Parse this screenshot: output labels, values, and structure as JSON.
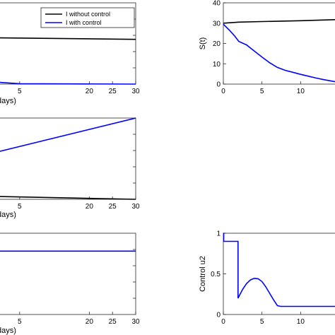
{
  "colors": {
    "without": "#000000",
    "with": "#0000ff"
  },
  "chart_data": [
    {
      "id": "I",
      "type": "line",
      "xlabel": "days)",
      "ylabel": "",
      "xlim": [
        0,
        30
      ],
      "ylim": [
        0,
        1
      ],
      "xticks": [
        "5",
        "20",
        "25",
        "30"
      ],
      "xtick_values": [
        5,
        20,
        25,
        30
      ],
      "yticks": [],
      "grid": false,
      "legend": {
        "placement": "top-right",
        "entries": [
          "I without control",
          "I with control"
        ]
      },
      "series": [
        {
          "name": "I without control",
          "color": "#000000",
          "x": [
            0,
            30
          ],
          "y": [
            0.57,
            0.55
          ]
        },
        {
          "name": "I with control",
          "color": "#0000ff",
          "x": [
            0,
            1,
            5,
            30
          ],
          "y": [
            0.03,
            0.02,
            0.005,
            0.0
          ]
        }
      ]
    },
    {
      "id": "S",
      "type": "line",
      "ylabel": "S(t)",
      "xlabel": "",
      "xlim": [
        0,
        15
      ],
      "ylim": [
        0,
        40
      ],
      "xticks": [
        "0",
        "5",
        "10"
      ],
      "xtick_values": [
        0,
        5,
        10
      ],
      "yticks": [
        "0",
        "10",
        "20",
        "30",
        "40"
      ],
      "ytick_values": [
        0,
        10,
        20,
        30,
        40
      ],
      "grid": false,
      "series": [
        {
          "color": "#000000",
          "x": [
            0,
            2,
            5,
            10,
            15
          ],
          "y": [
            30,
            30.5,
            30.8,
            31.2,
            31.8
          ]
        },
        {
          "color": "#0000ff",
          "x": [
            0,
            0.8,
            1.5,
            2.0,
            3.0,
            4.0,
            5.0,
            6.0,
            7.0,
            8.0,
            9.0,
            10.0,
            11.0,
            12.0,
            13.0,
            14.0,
            15.0
          ],
          "y": [
            29.5,
            26.5,
            23.5,
            21,
            19.3,
            16.3,
            13.3,
            10.5,
            8.2,
            6.8,
            5.8,
            4.8,
            3.9,
            3.0,
            2.2,
            1.5,
            0.8
          ]
        }
      ]
    },
    {
      "id": "middle-left",
      "type": "line",
      "xlabel": "days)",
      "ylabel": "",
      "xlim": [
        0,
        30
      ],
      "ylim": [
        0,
        1
      ],
      "xticks": [
        "5",
        "20",
        "25",
        "30"
      ],
      "xtick_values": [
        5,
        20,
        25,
        30
      ],
      "yticks": [],
      "grid": false,
      "series": [
        {
          "color": "#0000ff",
          "x": [
            0,
            30
          ],
          "y": [
            0.58,
            1.0
          ]
        },
        {
          "color": "#000000",
          "x": [
            0,
            30
          ],
          "y": [
            0.035,
            0.0
          ]
        }
      ]
    },
    {
      "id": "bottom-left",
      "type": "line",
      "xlabel": "days)",
      "ylabel": "",
      "xlim": [
        0,
        30
      ],
      "ylim": [
        0,
        1
      ],
      "xticks": [
        "5",
        "20",
        "25",
        "30"
      ],
      "xtick_values": [
        5,
        20,
        25,
        30
      ],
      "yticks": [],
      "grid": false,
      "series": [
        {
          "color": "#0000ff",
          "x": [
            0,
            30
          ],
          "y": [
            0.78,
            0.78
          ]
        }
      ]
    },
    {
      "id": "u2",
      "type": "line",
      "ylabel": "Control u2",
      "xlabel": "",
      "xlim": [
        0,
        15
      ],
      "ylim": [
        0,
        1
      ],
      "xticks": [
        "0",
        "5",
        "10"
      ],
      "xtick_values": [
        0,
        5,
        10
      ],
      "yticks": [
        "0",
        "0.5",
        "1"
      ],
      "ytick_values": [
        0,
        0.5,
        1
      ],
      "grid": false,
      "series": [
        {
          "color": "#0000ff",
          "x": [
            0,
            0.05,
            0.05,
            1.9,
            1.9,
            2.0,
            2.5,
            3.0,
            3.5,
            4.0,
            4.5,
            5.0,
            5.5,
            6.0,
            6.5,
            7.0,
            7.4,
            7.5,
            10,
            15
          ],
          "y": [
            1.0,
            1.0,
            0.9,
            0.9,
            0.2,
            0.22,
            0.31,
            0.38,
            0.425,
            0.445,
            0.44,
            0.405,
            0.34,
            0.26,
            0.18,
            0.11,
            0.1,
            0.1,
            0.1,
            0.1
          ]
        }
      ]
    }
  ]
}
